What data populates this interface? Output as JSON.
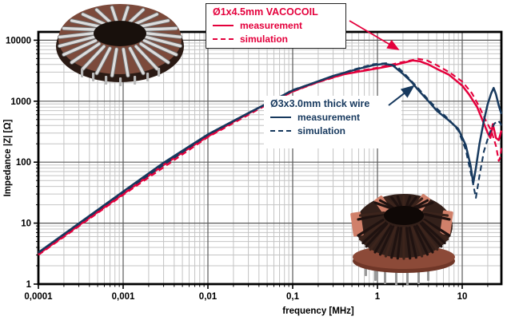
{
  "legends": {
    "vacocoil": {
      "title": "Ø1x4.5mm VACOCOIL",
      "measurement_label": "measurement",
      "simulation_label": "simulation",
      "color": "#e4003c"
    },
    "thick_wire": {
      "title": "Ø3x3.0mm thick wire",
      "measurement_label": "measurement",
      "simulation_label": "simulation",
      "color": "#17395e"
    }
  },
  "photos": {
    "top_left": "vacocoil-toroid-photo",
    "bottom_right": "thick-wire-toroid-photo"
  },
  "chart_data": {
    "type": "line",
    "title": "",
    "xlabel": "frequency [MHz]",
    "ylabel": "Impedance |Z| [Ω]",
    "x_scale": "log",
    "y_scale": "log",
    "xlim": [
      0.0001,
      29
    ],
    "ylim": [
      1,
      13600
    ],
    "grid": {
      "minor": true,
      "major": true
    },
    "x_ticks": [
      {
        "value": 0.0001,
        "label": "0,0001"
      },
      {
        "value": 0.001,
        "label": "0,001"
      },
      {
        "value": 0.01,
        "label": "0,01"
      },
      {
        "value": 0.1,
        "label": "0,1"
      },
      {
        "value": 1,
        "label": "1"
      },
      {
        "value": 10,
        "label": "10"
      }
    ],
    "y_ticks": [
      {
        "value": 1,
        "label": "1"
      },
      {
        "value": 10,
        "label": "10"
      },
      {
        "value": 100,
        "label": "100"
      },
      {
        "value": 1000,
        "label": "1000"
      },
      {
        "value": 10000,
        "label": "10000"
      }
    ],
    "colors": {
      "red": "#e4003c",
      "navy": "#17395e",
      "grid_minor": "#c4c4c4",
      "grid_major": "#5a5a5a",
      "frame": "#000000"
    },
    "series": [
      {
        "name": "Ø1x4.5mm VACOCOIL measurement",
        "coil": "vacocoil",
        "style": "solid",
        "color": "#e4003c",
        "points": [
          [
            0.0001,
            3.1
          ],
          [
            0.0003,
            9.2
          ],
          [
            0.001,
            30
          ],
          [
            0.003,
            90
          ],
          [
            0.006,
            170
          ],
          [
            0.01,
            265
          ],
          [
            0.02,
            460
          ],
          [
            0.04,
            780
          ],
          [
            0.07,
            1150
          ],
          [
            0.1,
            1450
          ],
          [
            0.15,
            1800
          ],
          [
            0.25,
            2300
          ],
          [
            0.4,
            2750
          ],
          [
            0.6,
            3050
          ],
          [
            1,
            3450
          ],
          [
            1.5,
            3850
          ],
          [
            2,
            4250
          ],
          [
            2.6,
            4650
          ],
          [
            3.2,
            4500
          ],
          [
            4,
            4000
          ],
          [
            5,
            3400
          ],
          [
            7,
            2700
          ],
          [
            10,
            1800
          ],
          [
            12,
            1300
          ],
          [
            15,
            800
          ],
          [
            18,
            430
          ],
          [
            20,
            300
          ],
          [
            21.5,
            250
          ],
          [
            23,
            420
          ],
          [
            25,
            250
          ],
          [
            27,
            230
          ],
          [
            29,
            330
          ]
        ]
      },
      {
        "name": "Ø1x4.5mm VACOCOIL simulation",
        "coil": "vacocoil",
        "style": "dashed",
        "color": "#e4003c",
        "points": [
          [
            0.0001,
            3.0
          ],
          [
            0.001,
            29
          ],
          [
            0.01,
            258
          ],
          [
            0.05,
            880
          ],
          [
            0.1,
            1430
          ],
          [
            0.2,
            2050
          ],
          [
            0.5,
            3000
          ],
          [
            1,
            3550
          ],
          [
            2,
            4400
          ],
          [
            3,
            4950
          ],
          [
            3.8,
            4700
          ],
          [
            5,
            3900
          ],
          [
            7,
            3000
          ],
          [
            10,
            2100
          ],
          [
            13,
            1350
          ],
          [
            16,
            800
          ],
          [
            19,
            480
          ],
          [
            22,
            330
          ],
          [
            25,
            185
          ],
          [
            27,
            105
          ],
          [
            28,
            120
          ],
          [
            29,
            170
          ]
        ]
      },
      {
        "name": "Ø3x3.0mm thick wire measurement",
        "coil": "thick_wire",
        "style": "solid",
        "color": "#17395e",
        "points": [
          [
            0.0001,
            3.3
          ],
          [
            0.001,
            33
          ],
          [
            0.003,
            98
          ],
          [
            0.01,
            285
          ],
          [
            0.03,
            640
          ],
          [
            0.1,
            1500
          ],
          [
            0.3,
            2600
          ],
          [
            0.6,
            3400
          ],
          [
            0.9,
            3900
          ],
          [
            1.2,
            4100
          ],
          [
            1.5,
            3900
          ],
          [
            2,
            2800
          ],
          [
            2.5,
            2100
          ],
          [
            3,
            1550
          ],
          [
            4,
            1000
          ],
          [
            5,
            700
          ],
          [
            7,
            480
          ],
          [
            9,
            350
          ],
          [
            11,
            190
          ],
          [
            12.5,
            90
          ],
          [
            13.5,
            45
          ],
          [
            14.5,
            80
          ],
          [
            16,
            200
          ],
          [
            18,
            480
          ],
          [
            20,
            900
          ],
          [
            22,
            1350
          ],
          [
            23.5,
            1650
          ],
          [
            25,
            1300
          ],
          [
            27,
            850
          ],
          [
            29,
            620
          ]
        ]
      },
      {
        "name": "Ø3x3.0mm thick wire simulation",
        "coil": "thick_wire",
        "style": "dashed",
        "color": "#17395e",
        "points": [
          [
            0.0001,
            3.25
          ],
          [
            0.001,
            32
          ],
          [
            0.01,
            280
          ],
          [
            0.1,
            1530
          ],
          [
            0.5,
            3250
          ],
          [
            0.9,
            4050
          ],
          [
            1.3,
            4200
          ],
          [
            1.7,
            3700
          ],
          [
            2,
            3000
          ],
          [
            3,
            1650
          ],
          [
            4,
            1050
          ],
          [
            5,
            760
          ],
          [
            7,
            500
          ],
          [
            9,
            330
          ],
          [
            11,
            160
          ],
          [
            13,
            55
          ],
          [
            14.5,
            26
          ],
          [
            16,
            60
          ],
          [
            18,
            150
          ],
          [
            21,
            300
          ],
          [
            24,
            430
          ],
          [
            26.5,
            480
          ],
          [
            28,
            440
          ],
          [
            29,
            400
          ]
        ]
      }
    ]
  }
}
